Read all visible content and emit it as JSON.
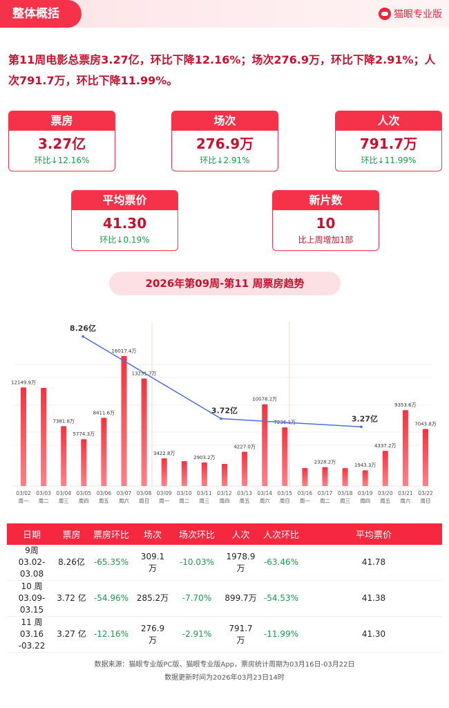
{
  "header": {
    "section_title": "整体概括",
    "brand": "猫眼专业版"
  },
  "summary": "第11周电影总票房3.27亿，环比下降12.16%；场次276.9万，环比下降2.91%；人次791.7万，环比下降11.99%。",
  "cards": [
    {
      "title": "票房",
      "value": "3.27亿",
      "sub": "环比↓12.16%"
    },
    {
      "title": "场次",
      "value": "276.9万",
      "sub": "环比↓2.91%"
    },
    {
      "title": "人次",
      "value": "791.7万",
      "sub": "环比↓11.99%"
    },
    {
      "title": "平均票价",
      "value": "41.30",
      "sub": "环比↓0.19%"
    },
    {
      "title": "新片数",
      "value": "10",
      "sub": "比上周增加1部"
    }
  ],
  "trend_title": "2026年第09周-第11 周票房趋势",
  "chart_data": {
    "type": "bar",
    "categories": [
      "03/02",
      "03/03",
      "03/04",
      "03/05",
      "03/06",
      "03/07",
      "03/08",
      "03/09",
      "03/10",
      "03/11",
      "03/12",
      "03/13",
      "03/14",
      "03/15",
      "03/16",
      "03/17",
      "03/18",
      "03/19",
      "03/20",
      "03/21",
      "03/22"
    ],
    "weekdays": [
      "周一",
      "周二",
      "周三",
      "周四",
      "周五",
      "周六",
      "周日",
      "周一",
      "周二",
      "周三",
      "周四",
      "周五",
      "周六",
      "周日",
      "周一",
      "周二",
      "周三",
      "周四",
      "周五",
      "周六",
      "周日"
    ],
    "values": [
      12149.9,
      12100,
      7381.8,
      5774.3,
      8411.6,
      16017.4,
      13251.7,
      3422.8,
      3070,
      2903.2,
      2730,
      4227.0,
      10078.2,
      7236.1,
      2215,
      2328.2,
      2200,
      1943.3,
      4337.2,
      9353.6,
      7043.8
    ],
    "labels": [
      "12149.9万",
      "",
      "7381.8万",
      "5774.3万",
      "8411.6万",
      "16017.4万",
      "13251.7万",
      "3422.8万",
      "",
      "2903.2万",
      "",
      "4227.0万",
      "10078.2万",
      "7236.1万",
      "",
      "2328.2万",
      "",
      "1943.3万",
      "4337.2万",
      "9353.6万",
      "7043.8万"
    ],
    "unit": "万",
    "weekly_line": {
      "values": [
        8.26,
        3.72,
        3.27
      ],
      "labels": [
        "8.26亿",
        "3.72亿",
        "3.27亿"
      ]
    },
    "colors": {
      "bar": "#f5333f",
      "line": "#4a6fd8"
    }
  },
  "table": {
    "headers": [
      "日期",
      "票房",
      "票房环比",
      "场次",
      "场次环比",
      "人次",
      "人次环比",
      "平均票价"
    ],
    "rows": [
      {
        "week": "9周",
        "range": "03.02-03.08",
        "box": "8.26亿",
        "box_chg": "-65.35%",
        "shows": "309.1 万",
        "shows_chg": "-10.03%",
        "adm": "1978.9 万",
        "adm_chg": "-63.46%",
        "price": "41.78"
      },
      {
        "week": "10 周",
        "range": "03.09-03.15",
        "box": "3.72 亿",
        "box_chg": "-54.96%",
        "shows": "285.2万",
        "shows_chg": "-7.70%",
        "adm": "899.7万",
        "adm_chg": "-54.53%",
        "price": "41.38"
      },
      {
        "week": "11 周",
        "range": "03.16 -03.22",
        "box": "3.27 亿",
        "box_chg": "-12.16%",
        "shows": "276.9 万",
        "shows_chg": "-2.91%",
        "adm": "791.7 万",
        "adm_chg": "-11.99%",
        "price": "41.30"
      }
    ]
  },
  "footer": {
    "source": "数据来源：猫眼专业版PC版、猫眼专业版App，票房统计周期为03月16日-03月22日",
    "updated": "数据更新时间为2026年03月23日14时"
  }
}
